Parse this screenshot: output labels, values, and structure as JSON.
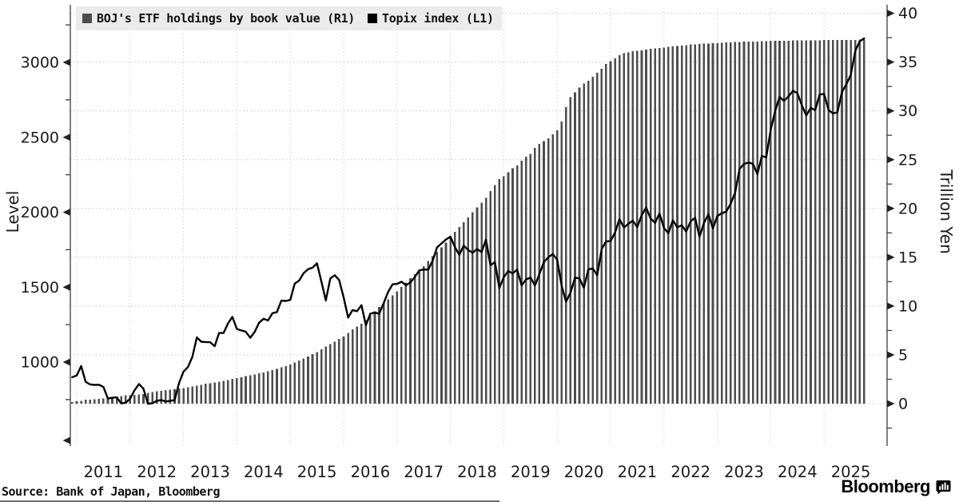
{
  "legend": {
    "background": "#ebebeb",
    "items": [
      {
        "label": "BOJ's ETF holdings by book value (R1)",
        "color": "#4d4d4d"
      },
      {
        "label": "Topix index (L1)",
        "color": "#000000"
      }
    ]
  },
  "left_axis": {
    "title": "Level",
    "major_ticks": [
      3000,
      2500,
      2000,
      1500,
      1000
    ],
    "minor_ticks": [
      3250,
      2750,
      2250,
      1750,
      1250,
      750
    ]
  },
  "right_axis": {
    "title": "Trillion Yen",
    "major_ticks": [
      40,
      35,
      30,
      25,
      20,
      15,
      10,
      5,
      0
    ],
    "minor_ticks": [
      37.5,
      32.5,
      27.5,
      22.5,
      17.5,
      12.5,
      7.5,
      2.5,
      -2.5
    ]
  },
  "x_axis": {
    "year_labels": [
      "2011",
      "2012",
      "2013",
      "2014",
      "2015",
      "2016",
      "2017",
      "2018",
      "2019",
      "2020",
      "2021",
      "2022",
      "2023",
      "2024",
      "2025"
    ]
  },
  "footer": {
    "source": "Source: Bank of Japan, Bloomberg",
    "brand": "Bloomberg"
  },
  "colors": {
    "bar": "#4d4d4d",
    "line": "#000000",
    "grid_h": "#c6c6c6",
    "grid_v": "#d2d2d2",
    "axis": "#3d3d3d",
    "tick_label": "#1a1a1a"
  },
  "chart_data": {
    "type": "combo",
    "x_interval": "monthly",
    "x_start": "2010-12",
    "x_end": "2025-10",
    "x_tick_labels": [
      "2011",
      "2012",
      "2013",
      "2014",
      "2015",
      "2016",
      "2017",
      "2018",
      "2019",
      "2020",
      "2021",
      "2022",
      "2023",
      "2024",
      "2025"
    ],
    "left_axis": {
      "label": "Level",
      "ticks": [
        1000,
        1500,
        2000,
        2500,
        3000
      ],
      "range": [
        440,
        3380
      ]
    },
    "right_axis": {
      "label": "Trillion Yen",
      "ticks": [
        0,
        5,
        10,
        15,
        20,
        25,
        30,
        35,
        40
      ],
      "range": [
        -4,
        41
      ]
    },
    "grid": "dotted, horizontal every 5 trillion yen, vertical every year",
    "legend_position": "top-left",
    "series": [
      {
        "name": "BOJ's ETF holdings by book value (R1)",
        "type": "bar",
        "axis": "right",
        "unit": "JPY trillions",
        "values": [
          0.18,
          0.23,
          0.28,
          0.39,
          0.42,
          0.46,
          0.5,
          0.53,
          0.62,
          0.7,
          0.73,
          0.79,
          0.84,
          0.87,
          0.9,
          0.95,
          1.0,
          1.1,
          1.19,
          1.25,
          1.32,
          1.38,
          1.44,
          1.48,
          1.54,
          1.6,
          1.67,
          1.75,
          1.85,
          1.93,
          2.03,
          2.1,
          2.18,
          2.25,
          2.33,
          2.42,
          2.53,
          2.62,
          2.71,
          2.81,
          2.91,
          3.0,
          3.1,
          3.2,
          3.31,
          3.43,
          3.56,
          3.71,
          3.85,
          4.03,
          4.22,
          4.43,
          4.64,
          4.85,
          5.07,
          5.3,
          5.56,
          5.84,
          6.1,
          6.35,
          6.62,
          6.9,
          7.25,
          7.6,
          7.9,
          8.2,
          8.55,
          9.0,
          9.45,
          9.9,
          10.3,
          10.7,
          11.1,
          11.5,
          11.95,
          12.4,
          12.85,
          13.25,
          13.7,
          14.1,
          14.6,
          15.1,
          15.55,
          16.0,
          16.5,
          17.0,
          17.6,
          18.1,
          18.6,
          19.1,
          19.6,
          20.1,
          20.6,
          21.1,
          21.8,
          22.4,
          23.0,
          23.3,
          23.7,
          24.1,
          24.4,
          24.9,
          25.3,
          25.6,
          26.2,
          26.6,
          26.9,
          27.2,
          27.6,
          28.0,
          28.9,
          30.4,
          31.4,
          31.9,
          32.4,
          32.8,
          33.1,
          33.5,
          33.9,
          34.3,
          34.8,
          35.1,
          35.4,
          35.7,
          35.9,
          36.0,
          36.1,
          36.15,
          36.2,
          36.3,
          36.35,
          36.4,
          36.45,
          36.5,
          36.55,
          36.6,
          36.65,
          36.7,
          36.75,
          36.8,
          36.82,
          36.85,
          36.88,
          36.9,
          36.92,
          36.95,
          36.98,
          37.0,
          37.02,
          37.05,
          37.08,
          37.1,
          37.1,
          37.12,
          37.12,
          37.15,
          37.15,
          37.17,
          37.18,
          37.19,
          37.2,
          37.2,
          37.21,
          37.22,
          37.22,
          37.23,
          37.23,
          37.24,
          37.24,
          37.25,
          37.25,
          37.26,
          37.26,
          37.27,
          37.27,
          37.28,
          37.28,
          37.29,
          37.3
        ]
      },
      {
        "name": "Topix index (L1)",
        "type": "line",
        "axis": "left",
        "unit": "index level",
        "values": [
          899,
          911,
          974,
          869,
          851,
          848,
          849,
          834,
          757,
          762,
          765,
          725,
          729,
          755,
          813,
          854,
          823,
          722,
          726,
          742,
          747,
          737,
          742,
          746,
          860,
          937,
          967,
          1035,
          1165,
          1136,
          1134,
          1133,
          1106,
          1194,
          1194,
          1258,
          1302,
          1221,
          1211,
          1203,
          1162,
          1202,
          1263,
          1289,
          1278,
          1326,
          1334,
          1410,
          1408,
          1415,
          1524,
          1544,
          1593,
          1620,
          1630,
          1659,
          1537,
          1412,
          1558,
          1580,
          1547,
          1432,
          1297,
          1347,
          1340,
          1380,
          1246,
          1323,
          1330,
          1323,
          1393,
          1469,
          1519,
          1522,
          1536,
          1513,
          1531,
          1568,
          1612,
          1618,
          1617,
          1675,
          1766,
          1792,
          1818,
          1837,
          1768,
          1716,
          1777,
          1747,
          1730,
          1754,
          1735,
          1817,
          1646,
          1668,
          1494,
          1567,
          1608,
          1592,
          1617,
          1512,
          1551,
          1565,
          1511,
          1587,
          1667,
          1699,
          1721,
          1684,
          1510,
          1403,
          1464,
          1563,
          1559,
          1496,
          1618,
          1625,
          1579,
          1755,
          1805,
          1808,
          1864,
          1954,
          1898,
          1922,
          1944,
          1901,
          1981,
          2031,
          1958,
          1929,
          1992,
          1896,
          1860,
          1946,
          1900,
          1913,
          1871,
          1940,
          1963,
          1836,
          1929,
          1986,
          1892,
          1975,
          1993,
          2004,
          2057,
          2131,
          2289,
          2322,
          2332,
          2323,
          2254,
          2375,
          2366,
          2551,
          2676,
          2769,
          2743,
          2773,
          2810,
          2794,
          2713,
          2646,
          2696,
          2681,
          2785,
          2789,
          2682,
          2659,
          2667,
          2802,
          2853,
          2917,
          3075,
          3140,
          3160
        ]
      }
    ]
  }
}
